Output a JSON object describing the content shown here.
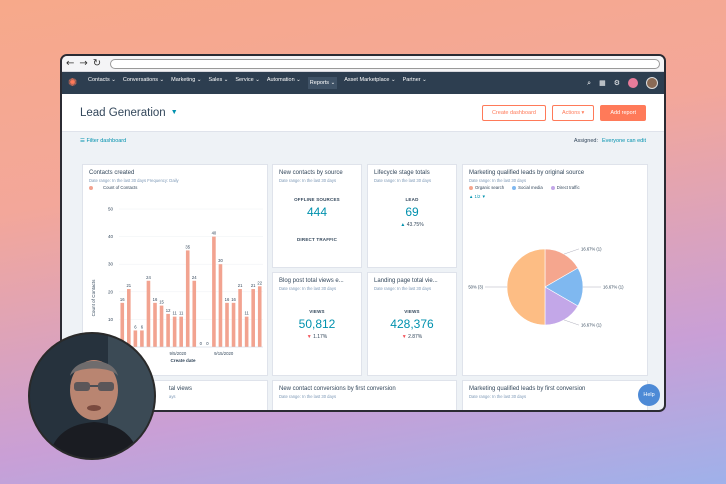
{
  "browser": {
    "back_icon": "←",
    "forward_icon": "→",
    "reload_icon": "↻"
  },
  "nav": {
    "logo_icon": "✺",
    "items": [
      "Contacts ⌄",
      "Conversations ⌄",
      "Marketing ⌄",
      "Sales ⌄",
      "Service ⌄",
      "Automation ⌄",
      "Reports ⌄",
      "Asset Marketplace ⌄",
      "Partner ⌄"
    ],
    "search_icon": "⌕",
    "marketplace_icon": "▦",
    "settings_icon": "⚙"
  },
  "header": {
    "title": "Lead Generation",
    "caret": "▼",
    "create_dashboard": "Create dashboard",
    "actions": "Actions ▾",
    "add_report": "Add report"
  },
  "filter": {
    "filter_label": "☰  Filter dashboard",
    "assigned_label": "Assigned:",
    "assigned_value": "Everyone can edit"
  },
  "cards": {
    "contacts_created": {
      "title": "Contacts created",
      "subtitle": "Date range: In the last 30 days     Frequency: Daily",
      "legend": "Count of Contacts",
      "ylabel": "Count of Contacts",
      "xlabel": "Create date"
    },
    "new_contacts_source": {
      "title": "New contacts by source",
      "subtitle": "Date range: In the last 30 days",
      "label1": "OFFLINE SOURCES",
      "value1": "444",
      "label2": "DIRECT TRAFFIC"
    },
    "lifecycle": {
      "title": "Lifecycle stage totals",
      "subtitle": "Date range: In the last 30 days",
      "label": "LEAD",
      "value": "69",
      "change": "43.75%"
    },
    "mql_source": {
      "title": "Marketing qualified leads by original source",
      "subtitle": "Date range: In the last 30 days",
      "legend": [
        "Organic search",
        "Social media",
        "Direct traffic"
      ],
      "pager": "▲ 1/2 ▼",
      "slice_labels": [
        "16.67% (1)",
        "16.67% (1)",
        "16.67% (1)",
        "50% (3)"
      ]
    },
    "blog_views": {
      "title": "Blog post total views e...",
      "subtitle": "Date range: In the last 30 days",
      "label": "VIEWS",
      "value": "50,812",
      "change": "1.17%"
    },
    "landing_views": {
      "title": "Landing page total vie...",
      "subtitle": "Date range: In the last 30 days",
      "label": "VIEWS",
      "value": "428,376",
      "change": "2.87%"
    },
    "total_views": {
      "title": "tal views",
      "subtitle": "ays"
    },
    "conversions": {
      "title": "New contact conversions by first conversion",
      "subtitle": "Date range: In the last 30 days"
    },
    "mql_first": {
      "title": "Marketing qualified leads by first conversion",
      "subtitle": "Date range: In the last 30 days"
    }
  },
  "help": "Help",
  "colors": {
    "bar": "#f2a390",
    "accent": "#ff7a59",
    "link": "#0091ae",
    "pie1": "#f5a68e",
    "pie2": "#7fb8f0",
    "pie3": "#c3a7e8",
    "pie4": "#fdbd84"
  },
  "chart_data": {
    "type": "bar",
    "title": "Contacts created",
    "xlabel": "Create date",
    "ylabel": "Count of Contacts",
    "ylim": [
      0,
      50
    ],
    "yticks": [
      0,
      10,
      20,
      30,
      40,
      50
    ],
    "xticks": [
      "9/5/2020",
      "9/15/2020"
    ],
    "values": [
      16,
      21,
      6,
      6,
      24,
      16,
      15,
      12,
      11,
      11,
      35,
      24,
      0,
      0,
      40,
      30,
      16,
      16,
      21,
      11,
      21,
      22
    ],
    "pie": {
      "type": "pie",
      "labels": [
        "Organic search",
        "Social media",
        "Direct traffic",
        ""
      ],
      "values": [
        16.67,
        16.67,
        16.67,
        50
      ]
    }
  }
}
